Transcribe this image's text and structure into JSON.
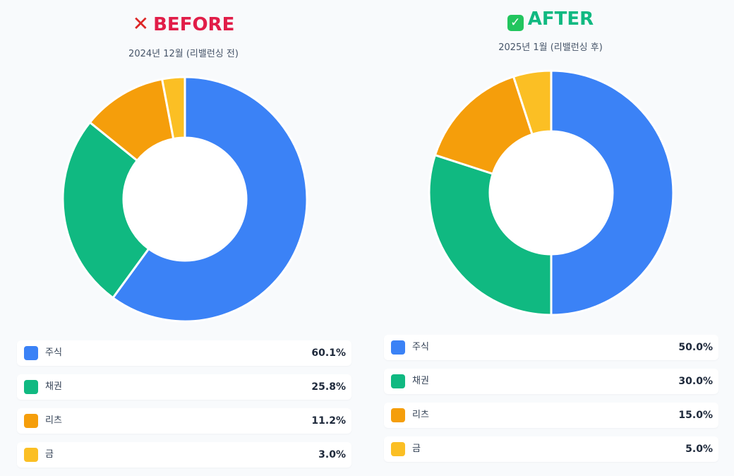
{
  "before": {
    "title": "BEFORE",
    "title_color": "#e11d48",
    "subtitle": "2024년 12월 (리밸런싱 전)",
    "mark_icon": "cross-mark-icon",
    "mark_glyph": "✕"
  },
  "after": {
    "title": "AFTER",
    "title_color": "#10b981",
    "subtitle": "2025년 1월 (리밸런싱 후)",
    "mark_icon": "check-mark-icon",
    "mark_glyph": "✓"
  },
  "chart_data": [
    {
      "type": "pie",
      "style": "donut",
      "title": "BEFORE",
      "subtitle": "2024년 12월 (리밸런싱 전)",
      "categories": [
        "주식",
        "채권",
        "리츠",
        "금"
      ],
      "values": [
        60.1,
        25.8,
        11.2,
        3.0
      ],
      "value_labels": [
        "60.1%",
        "25.8%",
        "11.2%",
        "3.0%"
      ],
      "colors": [
        "#3b82f6",
        "#10b981",
        "#f59e0b",
        "#fbbf24"
      ]
    },
    {
      "type": "pie",
      "style": "donut",
      "title": "AFTER",
      "subtitle": "2025년 1월 (리밸런싱 후)",
      "categories": [
        "주식",
        "채권",
        "리츠",
        "금"
      ],
      "values": [
        50.0,
        30.0,
        15.0,
        5.0
      ],
      "value_labels": [
        "50.0%",
        "30.0%",
        "15.0%",
        "5.0%"
      ],
      "colors": [
        "#3b82f6",
        "#10b981",
        "#f59e0b",
        "#fbbf24"
      ]
    }
  ]
}
